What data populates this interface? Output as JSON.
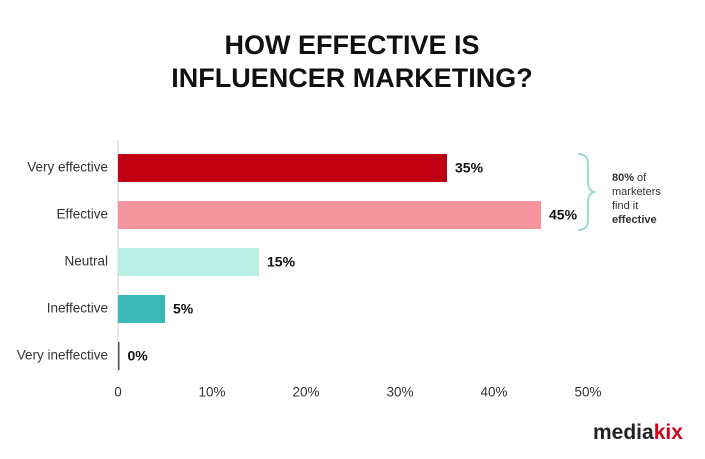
{
  "chart_data": {
    "type": "hbar",
    "title": [
      "HOW EFFECTIVE IS",
      "INFLUENCER MARKETING?"
    ],
    "categories": [
      "Very effective",
      "Effective",
      "Neutral",
      "Ineffective",
      "Very ineffective"
    ],
    "values": [
      35,
      45,
      15,
      5,
      0
    ],
    "value_labels": [
      "35%",
      "45%",
      "15%",
      "5%",
      "0%"
    ],
    "colors": [
      "#c00012",
      "#f7959f",
      "#b9efe2",
      "#3bb7b8",
      "#555555"
    ],
    "xlim": [
      0,
      50
    ],
    "xticks": [
      0,
      {
        "value": 10,
        "label": "10%"
      },
      {
        "value": 20,
        "label": "20%"
      },
      {
        "value": 30,
        "label": "30%"
      },
      {
        "value": 40,
        "label": "40%"
      },
      {
        "value": 50,
        "label": "50%"
      }
    ],
    "annotation": [
      "80%",
      "of",
      "marketers",
      "find it",
      "effective"
    ],
    "logo": [
      "media",
      "kix"
    ]
  }
}
